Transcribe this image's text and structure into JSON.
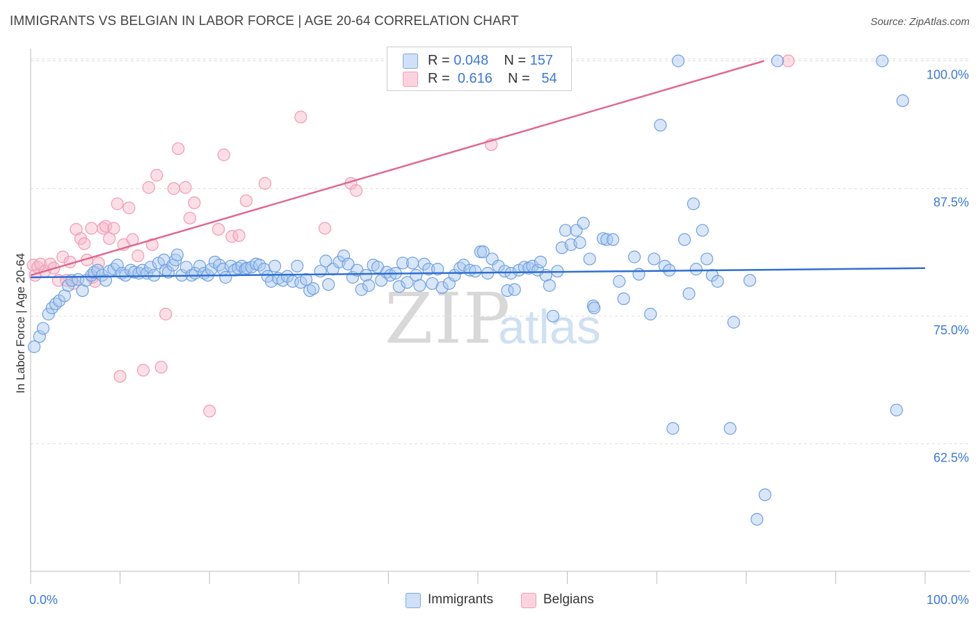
{
  "header": {
    "title": "IMMIGRANTS VS BELGIAN IN LABOR FORCE | AGE 20-64 CORRELATION CHART",
    "source": "Source: ZipAtlas.com"
  },
  "watermark": {
    "zip": "ZIP",
    "atlas": "atlas"
  },
  "legend": {
    "rows": [
      {
        "r_label": "R = ",
        "r_value": "0.048",
        "n_label": "N = ",
        "n_value": "157",
        "color": "#a9c8f0"
      },
      {
        "r_label": "R = ",
        "r_value": "0.616",
        "n_label": "N = ",
        "n_value": "54",
        "color": "#f6b6c8"
      }
    ]
  },
  "bottom_legend": [
    {
      "label": "Immigrants",
      "color": "#a9c8f0"
    },
    {
      "label": "Belgians",
      "color": "#f6b6c8"
    }
  ],
  "chart_data": {
    "type": "scatter",
    "title": "IMMIGRANTS VS BELGIAN IN LABOR FORCE | AGE 20-64 CORRELATION CHART",
    "xlabel": "",
    "ylabel": "In Labor Force | Age 20-64",
    "xlim": [
      0,
      100
    ],
    "ylim": [
      50,
      101.2
    ],
    "x_tick_labels": [
      "0.0%",
      "100.0%"
    ],
    "y_ticks": [
      62.5,
      75.0,
      87.5,
      100.0
    ],
    "y_tick_labels": [
      "62.5%",
      "75.0%",
      "87.5%",
      "100.0%"
    ],
    "grid": true,
    "colors": {
      "immigrants": "#6fa0e0",
      "belgians": "#f09ab5",
      "immigrants_line": "#2f6fd0",
      "belgians_line": "#e06890",
      "tick_label": "#3b78d8"
    },
    "series": [
      {
        "name": "Immigrants",
        "trend": {
          "x": [
            0,
            100
          ],
          "y": [
            78.8,
            79.7
          ]
        },
        "points": [
          [
            0.4,
            72.0
          ],
          [
            1.0,
            73.0
          ],
          [
            1.4,
            73.8
          ],
          [
            2.0,
            75.2
          ],
          [
            2.4,
            75.8
          ],
          [
            2.8,
            76.2
          ],
          [
            3.2,
            76.5
          ],
          [
            3.8,
            77.0
          ],
          [
            4.2,
            78.0
          ],
          [
            4.6,
            78.5
          ],
          [
            5.3,
            78.6
          ],
          [
            5.8,
            77.5
          ],
          [
            6.2,
            78.5
          ],
          [
            6.8,
            79.0
          ],
          [
            7.1,
            79.3
          ],
          [
            7.5,
            79.5
          ],
          [
            8.0,
            79.0
          ],
          [
            8.4,
            78.5
          ],
          [
            8.8,
            79.4
          ],
          [
            9.3,
            79.6
          ],
          [
            9.7,
            80.0
          ],
          [
            10.2,
            79.2
          ],
          [
            10.6,
            79.0
          ],
          [
            11.2,
            79.5
          ],
          [
            11.6,
            79.3
          ],
          [
            12.1,
            79.2
          ],
          [
            12.5,
            79.5
          ],
          [
            13.0,
            79.2
          ],
          [
            13.4,
            79.8
          ],
          [
            13.8,
            79.0
          ],
          [
            14.3,
            80.2
          ],
          [
            14.9,
            80.5
          ],
          [
            15.1,
            79.5
          ],
          [
            15.4,
            79.3
          ],
          [
            15.9,
            80.0
          ],
          [
            16.2,
            80.5
          ],
          [
            16.4,
            81.0
          ],
          [
            16.9,
            79.0
          ],
          [
            17.4,
            79.8
          ],
          [
            18.0,
            79.0
          ],
          [
            18.4,
            79.2
          ],
          [
            18.9,
            79.9
          ],
          [
            19.4,
            79.2
          ],
          [
            19.8,
            79.0
          ],
          [
            20.2,
            79.6
          ],
          [
            20.6,
            80.3
          ],
          [
            21.1,
            80.0
          ],
          [
            21.5,
            79.6
          ],
          [
            21.8,
            78.8
          ],
          [
            22.4,
            79.9
          ],
          [
            22.8,
            79.5
          ],
          [
            23.2,
            79.7
          ],
          [
            23.6,
            79.9
          ],
          [
            24.0,
            79.6
          ],
          [
            24.2,
            79.7
          ],
          [
            24.7,
            79.8
          ],
          [
            25.2,
            80.1
          ],
          [
            25.6,
            80.0
          ],
          [
            26.1,
            79.6
          ],
          [
            26.5,
            78.9
          ],
          [
            26.9,
            78.4
          ],
          [
            27.3,
            79.9
          ],
          [
            27.7,
            78.7
          ],
          [
            28.2,
            78.5
          ],
          [
            28.7,
            78.9
          ],
          [
            29.3,
            78.4
          ],
          [
            29.8,
            79.9
          ],
          [
            30.2,
            78.3
          ],
          [
            30.8,
            78.6
          ],
          [
            31.2,
            77.5
          ],
          [
            31.6,
            77.7
          ],
          [
            32.4,
            79.4
          ],
          [
            33.0,
            80.4
          ],
          [
            33.3,
            78.1
          ],
          [
            33.8,
            79.6
          ],
          [
            34.5,
            80.3
          ],
          [
            35.0,
            80.9
          ],
          [
            35.5,
            80.1
          ],
          [
            36.0,
            78.8
          ],
          [
            36.5,
            79.5
          ],
          [
            37.0,
            77.6
          ],
          [
            37.5,
            79.0
          ],
          [
            37.8,
            78.0
          ],
          [
            38.3,
            80.0
          ],
          [
            38.8,
            79.8
          ],
          [
            39.2,
            78.5
          ],
          [
            39.8,
            79.3
          ],
          [
            40.2,
            79.0
          ],
          [
            40.8,
            79.2
          ],
          [
            41.2,
            77.9
          ],
          [
            41.6,
            80.2
          ],
          [
            42.1,
            78.3
          ],
          [
            42.7,
            80.2
          ],
          [
            43.1,
            79.0
          ],
          [
            43.5,
            78.0
          ],
          [
            44.0,
            80.1
          ],
          [
            44.5,
            79.6
          ],
          [
            44.9,
            78.2
          ],
          [
            45.5,
            79.6
          ],
          [
            46.0,
            77.8
          ],
          [
            46.8,
            78.2
          ],
          [
            47.4,
            79.0
          ],
          [
            48.0,
            79.7
          ],
          [
            48.4,
            80.0
          ],
          [
            49.1,
            79.5
          ],
          [
            49.7,
            79.4
          ],
          [
            50.3,
            81.3
          ],
          [
            50.6,
            81.3
          ],
          [
            51.1,
            79.2
          ],
          [
            51.6,
            80.6
          ],
          [
            52.3,
            79.9
          ],
          [
            53.0,
            79.4
          ],
          [
            53.3,
            77.5
          ],
          [
            53.7,
            79.2
          ],
          [
            54.1,
            77.6
          ],
          [
            54.6,
            79.5
          ],
          [
            55.2,
            79.8
          ],
          [
            55.7,
            79.7
          ],
          [
            56.1,
            79.9
          ],
          [
            56.7,
            79.5
          ],
          [
            57.0,
            80.3
          ],
          [
            57.6,
            79.0
          ],
          [
            58.0,
            78.0
          ],
          [
            58.4,
            75.0
          ],
          [
            58.9,
            79.4
          ],
          [
            59.4,
            81.7
          ],
          [
            59.8,
            83.4
          ],
          [
            60.4,
            82.0
          ],
          [
            61.0,
            83.4
          ],
          [
            61.4,
            82.2
          ],
          [
            61.8,
            84.1
          ],
          [
            62.5,
            80.6
          ],
          [
            62.9,
            76.0
          ],
          [
            63.0,
            75.8
          ],
          [
            64.0,
            82.6
          ],
          [
            64.4,
            82.5
          ],
          [
            65.1,
            82.5
          ],
          [
            65.8,
            78.4
          ],
          [
            66.3,
            76.7
          ],
          [
            67.5,
            80.8
          ],
          [
            68.0,
            79.1
          ],
          [
            69.3,
            75.2
          ],
          [
            69.7,
            80.6
          ],
          [
            70.4,
            93.7
          ],
          [
            70.9,
            79.9
          ],
          [
            71.4,
            79.5
          ],
          [
            71.8,
            64.0
          ],
          [
            73.1,
            82.5
          ],
          [
            73.6,
            77.2
          ],
          [
            74.1,
            86.0
          ],
          [
            74.4,
            79.6
          ],
          [
            75.1,
            83.4
          ],
          [
            75.6,
            80.6
          ],
          [
            76.2,
            79.0
          ],
          [
            76.8,
            78.4
          ],
          [
            78.2,
            64.0
          ],
          [
            78.6,
            74.4
          ],
          [
            80.4,
            78.5
          ],
          [
            81.2,
            55.1
          ],
          [
            82.1,
            57.5
          ],
          [
            83.5,
            100.0
          ],
          [
            96.8,
            65.8
          ],
          [
            97.5,
            96.1
          ],
          [
            95.2,
            100.0
          ],
          [
            72.4,
            100.0
          ]
        ]
      },
      {
        "name": "Belgians",
        "trend": {
          "x": [
            0,
            82
          ],
          "y": [
            79.0,
            100.0
          ]
        },
        "points": [
          [
            0.3,
            80.0
          ],
          [
            0.5,
            79.0
          ],
          [
            0.8,
            79.8
          ],
          [
            1.1,
            80.1
          ],
          [
            1.6,
            79.4
          ],
          [
            2.2,
            80.1
          ],
          [
            2.6,
            79.7
          ],
          [
            3.1,
            78.5
          ],
          [
            3.6,
            80.8
          ],
          [
            4.0,
            78.5
          ],
          [
            4.4,
            80.3
          ],
          [
            4.8,
            78.2
          ],
          [
            5.1,
            83.5
          ],
          [
            5.6,
            82.6
          ],
          [
            6.0,
            82.1
          ],
          [
            6.3,
            80.5
          ],
          [
            6.8,
            83.6
          ],
          [
            7.2,
            78.4
          ],
          [
            7.6,
            80.2
          ],
          [
            8.1,
            83.6
          ],
          [
            8.4,
            83.8
          ],
          [
            8.8,
            82.6
          ],
          [
            9.3,
            83.6
          ],
          [
            9.7,
            86.0
          ],
          [
            10.0,
            69.1
          ],
          [
            10.4,
            82.0
          ],
          [
            11.0,
            85.6
          ],
          [
            11.4,
            82.5
          ],
          [
            12.0,
            80.9
          ],
          [
            12.6,
            69.7
          ],
          [
            13.2,
            87.6
          ],
          [
            13.6,
            82.0
          ],
          [
            14.1,
            88.8
          ],
          [
            14.6,
            70.0
          ],
          [
            15.1,
            75.2
          ],
          [
            16.0,
            87.5
          ],
          [
            16.5,
            91.4
          ],
          [
            17.3,
            87.6
          ],
          [
            17.8,
            84.6
          ],
          [
            18.3,
            86.1
          ],
          [
            20.0,
            65.7
          ],
          [
            21.0,
            83.5
          ],
          [
            21.6,
            90.8
          ],
          [
            22.5,
            82.8
          ],
          [
            23.3,
            82.9
          ],
          [
            24.1,
            86.3
          ],
          [
            26.2,
            88.0
          ],
          [
            30.2,
            94.5
          ],
          [
            32.9,
            83.6
          ],
          [
            35.8,
            88.0
          ],
          [
            36.4,
            87.3
          ],
          [
            51.5,
            91.8
          ],
          [
            84.7,
            100.0
          ],
          [
            6.9,
            78.8
          ]
        ]
      }
    ]
  }
}
